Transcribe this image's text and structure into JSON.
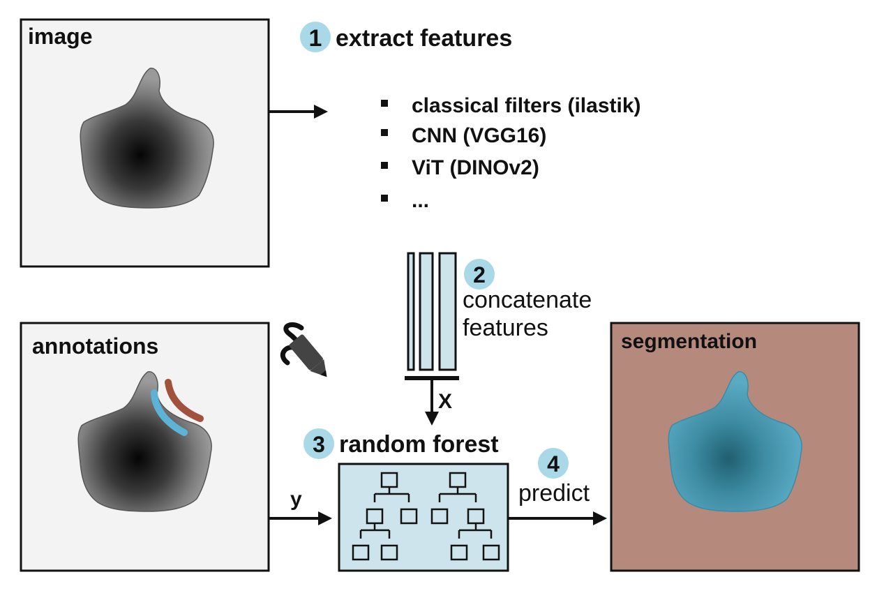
{
  "panels": {
    "image": {
      "label": "image"
    },
    "annotations": {
      "label": "annotations"
    },
    "segmentation": {
      "label": "segmentation"
    }
  },
  "steps": [
    {
      "number": "1",
      "label": "extract features"
    },
    {
      "number": "2",
      "label_line1": "concatenate",
      "label_line2": "features"
    },
    {
      "number": "3",
      "label": "random forest"
    },
    {
      "number": "4",
      "label": "predict"
    }
  ],
  "feature_list": [
    "classical filters (ilastik)",
    "CNN (VGG16)",
    "ViT (DINOv2)",
    "..."
  ],
  "arrow_labels": {
    "x": "X",
    "y": "y"
  },
  "colors": {
    "step_circle": "#a9d8e6",
    "feature_fill": "#cfe3ea",
    "forest_fill": "#cde4ec",
    "annotation_blue": "#5cb3d6",
    "annotation_brown": "#a0523c",
    "segmentation_bg": "#b58a7c",
    "segmentation_cell": "#4d9fb8"
  },
  "icons": {
    "annotate": "squiggle-pencil-icon"
  }
}
